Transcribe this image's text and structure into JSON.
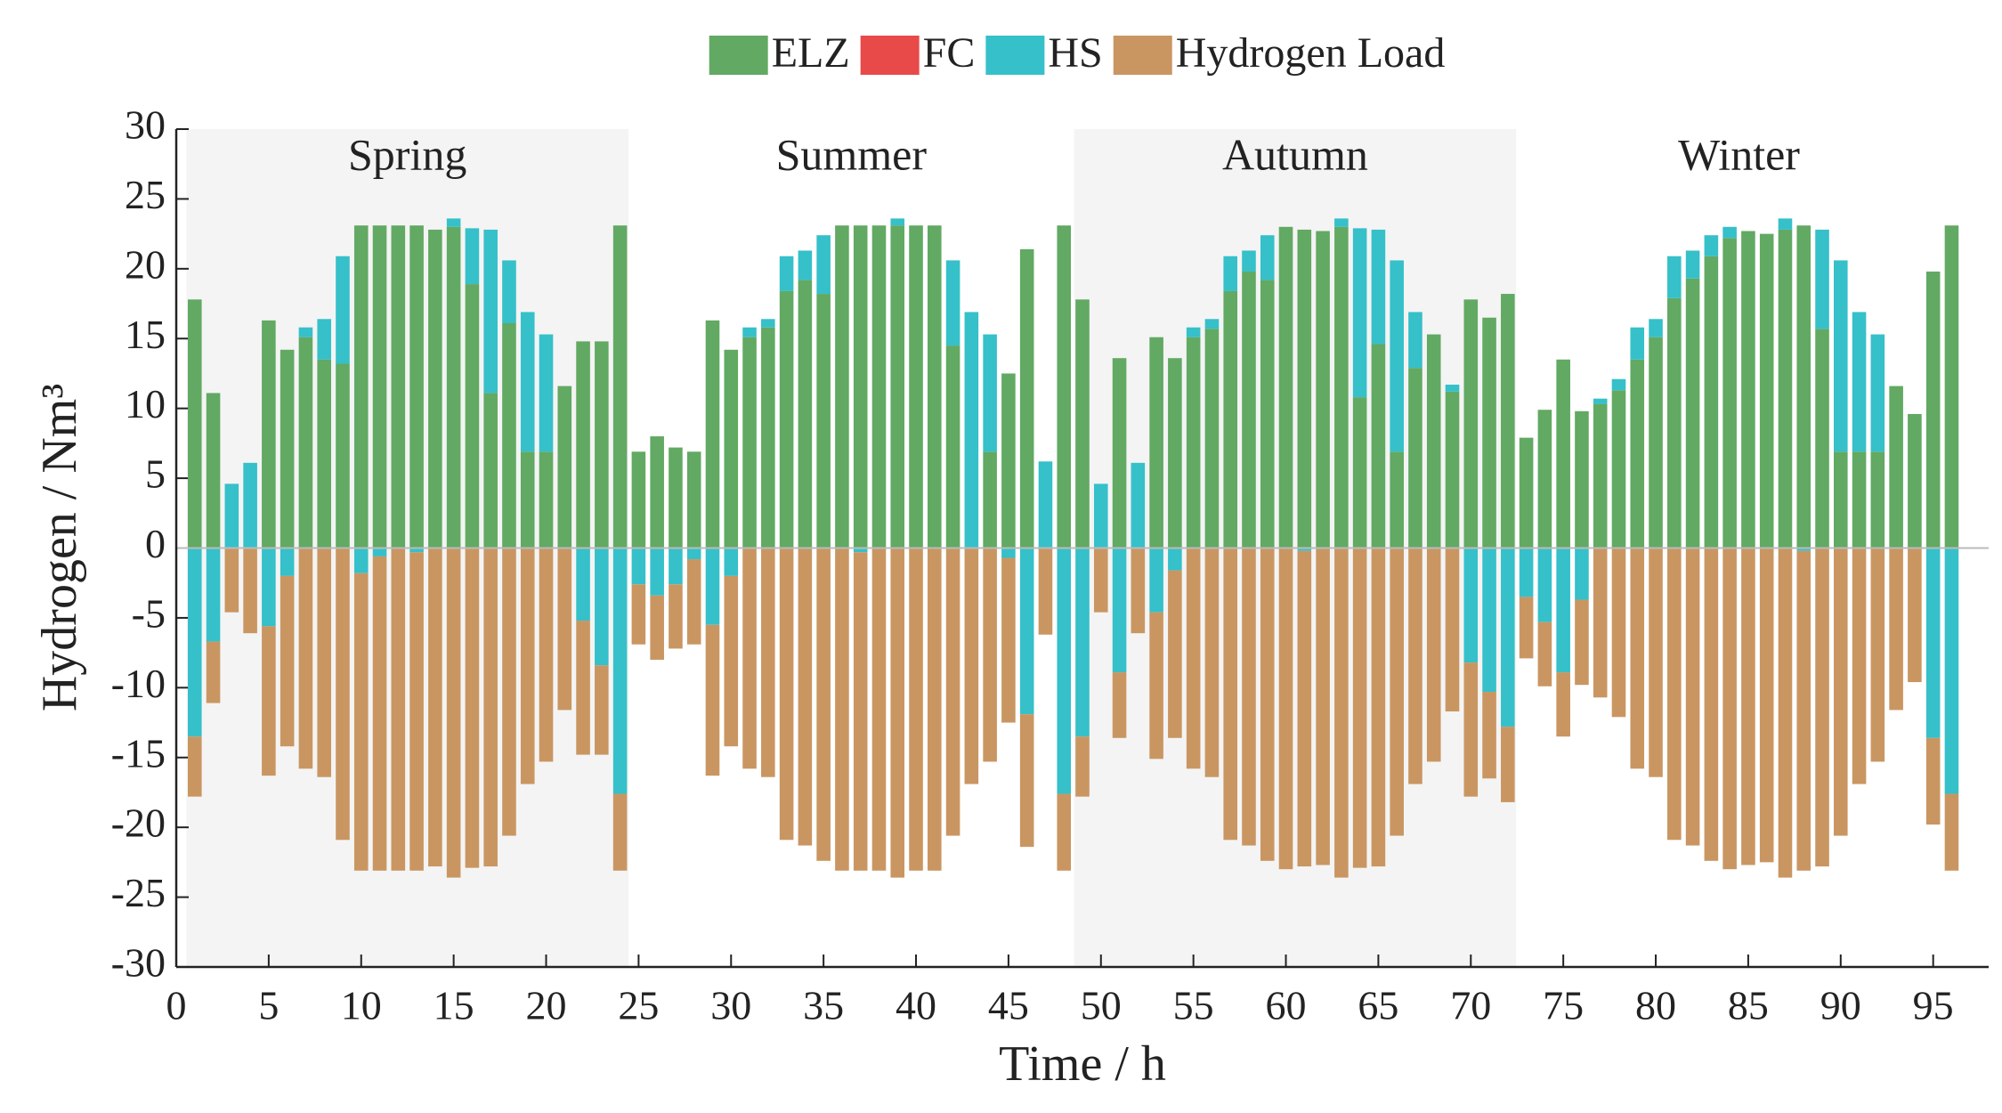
{
  "chart_data": {
    "type": "bar",
    "stacked": true,
    "x_label": "Time / h",
    "y_label": "Hydrogen / Nm³",
    "x": [
      1,
      2,
      3,
      4,
      5,
      6,
      7,
      8,
      9,
      10,
      11,
      12,
      13,
      14,
      15,
      16,
      17,
      18,
      19,
      20,
      21,
      22,
      23,
      24,
      25,
      26,
      27,
      28,
      29,
      30,
      31,
      32,
      33,
      34,
      35,
      36,
      37,
      38,
      39,
      40,
      41,
      42,
      43,
      44,
      45,
      46,
      47,
      48,
      49,
      50,
      51,
      52,
      53,
      54,
      55,
      56,
      57,
      58,
      59,
      60,
      61,
      62,
      63,
      64,
      65,
      66,
      67,
      68,
      69,
      70,
      71,
      72,
      73,
      74,
      75,
      76,
      77,
      78,
      79,
      80,
      81,
      82,
      83,
      84,
      85,
      86,
      87,
      88,
      89,
      90,
      91,
      92,
      93,
      94,
      95,
      96
    ],
    "series": [
      {
        "name": "ELZ",
        "color": "#62a963",
        "values": [
          17.8,
          11.1,
          0,
          0,
          16.3,
          14.2,
          15.1,
          13.5,
          13.2,
          23.1,
          23.1,
          23.1,
          23.1,
          22.8,
          23.0,
          18.9,
          11.1,
          16.1,
          6.9,
          6.9,
          11.6,
          14.8,
          14.8,
          23.1,
          6.9,
          8.0,
          7.2,
          6.9,
          16.3,
          14.2,
          15.1,
          15.8,
          18.4,
          19.2,
          18.2,
          23.1,
          23.1,
          23.1,
          23.1,
          23.1,
          23.1,
          14.5,
          0,
          6.9,
          12.5,
          21.4,
          0,
          23.1,
          17.8,
          0,
          13.6,
          0,
          15.1,
          13.6,
          15.1,
          15.7,
          18.4,
          19.8,
          19.2,
          23.0,
          22.8,
          22.7,
          23.0,
          10.8,
          14.6,
          6.9,
          12.9,
          15.3,
          11.2,
          17.8,
          16.5,
          18.2,
          7.9,
          9.9,
          13.5,
          9.8,
          10.3,
          11.3,
          13.5,
          15.1,
          17.9,
          19.3,
          20.9,
          22.2,
          22.7,
          22.5,
          22.8,
          23.1,
          15.7,
          6.9,
          6.9,
          6.9,
          11.6,
          9.6,
          19.8,
          23.1
        ]
      },
      {
        "name": "FC",
        "color": "#e84a4a",
        "values": [
          0,
          0,
          0,
          0,
          0,
          0,
          0,
          0,
          0,
          0,
          0,
          0,
          0,
          0,
          0,
          0,
          0,
          0,
          0,
          0,
          0,
          0,
          0,
          0,
          0,
          0,
          0,
          0,
          0,
          0,
          0,
          0,
          0,
          0,
          0,
          0,
          0,
          0,
          0,
          0,
          0,
          0,
          0,
          0,
          0,
          0,
          0,
          0,
          0,
          0,
          0,
          0,
          0,
          0,
          0,
          0,
          0,
          0,
          0,
          0,
          0,
          0,
          0,
          0,
          0,
          0,
          0,
          0,
          0,
          0,
          0,
          0,
          0,
          0,
          0,
          0,
          0,
          0,
          0,
          0,
          0,
          0,
          0,
          0,
          0,
          0,
          0,
          0,
          0,
          0,
          0,
          0,
          0,
          0,
          0,
          0
        ]
      },
      {
        "name": "HS",
        "color": "#36c0c9",
        "values": [
          -13.5,
          -6.7,
          4.6,
          6.1,
          -5.6,
          -2.0,
          0.7,
          2.9,
          7.7,
          -1.8,
          -0.6,
          0,
          -0.3,
          0,
          0.6,
          4.0,
          11.7,
          4.5,
          10.0,
          8.4,
          0,
          -5.2,
          -8.4,
          -17.6,
          -2.6,
          -3.4,
          -2.6,
          -0.8,
          -5.5,
          -2.0,
          0.7,
          0.6,
          2.5,
          2.1,
          4.2,
          0,
          -0.3,
          0,
          0.5,
          0,
          0,
          6.1,
          16.9,
          8.4,
          -0.7,
          -11.9,
          6.2,
          -17.6,
          -13.5,
          4.6,
          -8.9,
          6.1,
          -4.6,
          -1.6,
          0.7,
          0.7,
          2.5,
          1.5,
          3.2,
          0,
          -0.2,
          0,
          0.6,
          12.1,
          8.2,
          13.7,
          4.0,
          0,
          0.5,
          -8.2,
          -10.3,
          -12.8,
          -3.5,
          -5.3,
          -8.9,
          -3.7,
          0.4,
          0.8,
          2.3,
          1.3,
          3.0,
          2.0,
          1.5,
          0.8,
          0,
          0,
          0.8,
          -0.2,
          7.1,
          13.7,
          10.0,
          8.4,
          0,
          0,
          -13.6,
          -17.6
        ]
      },
      {
        "name": "Hydrogen Load",
        "color": "#c99662",
        "values": [
          -4.3,
          -4.4,
          -4.6,
          -6.1,
          -10.7,
          -12.2,
          -15.8,
          -16.4,
          -20.9,
          -21.3,
          -22.5,
          -23.1,
          -22.8,
          -22.8,
          -23.6,
          -22.9,
          -22.8,
          -20.6,
          -16.9,
          -15.3,
          -11.6,
          -9.6,
          -6.4,
          -5.5,
          -4.3,
          -4.6,
          -4.6,
          -6.1,
          -10.8,
          -12.2,
          -15.8,
          -16.4,
          -20.9,
          -21.3,
          -22.4,
          -23.1,
          -22.8,
          -23.1,
          -23.6,
          -23.1,
          -23.1,
          -20.6,
          -16.9,
          -15.3,
          -11.8,
          -9.5,
          -6.2,
          -5.5,
          -4.3,
          -4.6,
          -4.7,
          -6.1,
          -10.5,
          -12.0,
          -15.8,
          -16.4,
          -20.9,
          -21.3,
          -22.4,
          -23.0,
          -22.6,
          -22.7,
          -23.6,
          -22.9,
          -22.8,
          -20.6,
          -16.9,
          -15.3,
          -11.7,
          -9.6,
          -6.2,
          -5.4,
          -4.4,
          -4.6,
          -4.6,
          -6.1,
          -10.7,
          -12.1,
          -15.8,
          -16.4,
          -20.9,
          -21.3,
          -22.4,
          -23.0,
          -22.7,
          -22.5,
          -23.6,
          -22.9,
          -22.8,
          -20.6,
          -16.9,
          -15.3,
          -11.6,
          -9.6,
          -6.2,
          -5.5
        ]
      }
    ],
    "regions": [
      {
        "label": "Spring",
        "xlim": [
          1,
          24
        ],
        "shaded": true
      },
      {
        "label": "Summer",
        "xlim": [
          25,
          48
        ],
        "shaded": false
      },
      {
        "label": "Autumn",
        "xlim": [
          49,
          72
        ],
        "shaded": true
      },
      {
        "label": "Winter",
        "xlim": [
          73,
          96
        ],
        "shaded": false
      }
    ],
    "xlim": [
      0,
      98
    ],
    "xticks": [
      0,
      5,
      10,
      15,
      20,
      25,
      30,
      35,
      40,
      45,
      50,
      55,
      60,
      65,
      70,
      75,
      80,
      85,
      90,
      95
    ],
    "ylim": [
      -30,
      30
    ],
    "yticks": [
      -30,
      -25,
      -20,
      -15,
      -10,
      -5,
      0,
      5,
      10,
      15,
      20,
      25,
      30
    ],
    "legend": "top"
  }
}
